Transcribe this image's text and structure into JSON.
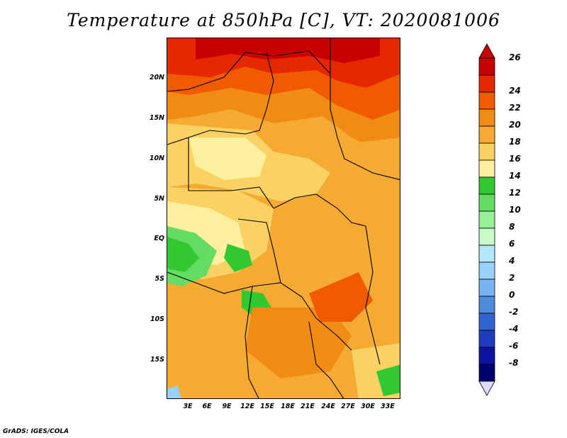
{
  "title": "Temperature at 850hPa [C], VT: 2020081006",
  "footer": "GrADS: IGES/COLA",
  "y_axis_labels": [
    "20N",
    "15N",
    "10N",
    "5N",
    "EQ",
    "5S",
    "10S",
    "15S"
  ],
  "x_axis_labels": [
    "3E",
    "6E",
    "9E",
    "12E",
    "15E",
    "18E",
    "21E",
    "24E",
    "27E",
    "30E",
    "33E"
  ],
  "colorbar": {
    "labels": [
      "26",
      "24",
      "22",
      "20",
      "18",
      "16",
      "14",
      "12",
      "10",
      "8",
      "6",
      "4",
      "2",
      "0",
      "-2",
      "-4",
      "-6",
      "-8"
    ],
    "colors": [
      "#c80000",
      "#e62800",
      "#f05a00",
      "#f08c14",
      "#f5aa32",
      "#fad264",
      "#fff0a0",
      "#32c832",
      "#64dc64",
      "#96f096",
      "#c8fac8",
      "#b4e6fa",
      "#96d2fa",
      "#78b4f0",
      "#508cdc",
      "#3264d2",
      "#1e3cbe",
      "#0a14a0",
      "#00006e"
    ],
    "top_color": "#c80000",
    "bottom_color": "#dcdcfa"
  }
}
